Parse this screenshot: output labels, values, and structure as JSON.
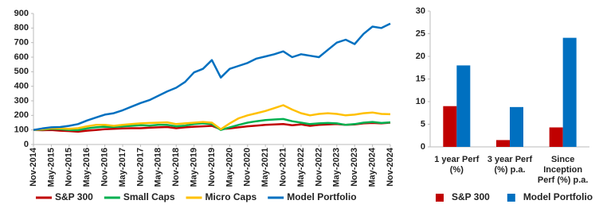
{
  "chart_data": [
    {
      "type": "line",
      "categories": [
        "Nov-2014",
        null,
        "May-2015",
        null,
        "Nov-2015",
        null,
        "May-2016",
        null,
        "Nov-2016",
        null,
        "May-2017",
        null,
        "Nov-2017",
        null,
        "May-2018",
        null,
        "Nov-2018",
        null,
        "May-2019",
        null,
        "Nov-2019",
        null,
        "May-2020",
        null,
        "Nov-2020",
        null,
        "May-2021",
        null,
        "Nov-2021",
        null,
        "May-2022",
        null,
        "Nov-2022",
        null,
        "May-2023",
        null,
        "Nov-2023",
        null,
        "May-2024",
        null,
        "Nov-2024"
      ],
      "series": [
        {
          "name": "S&P 300",
          "color": "#c00000",
          "values": [
            100,
            98,
            100,
            95,
            92,
            88,
            95,
            100,
            105,
            108,
            110,
            112,
            112,
            115,
            118,
            120,
            112,
            118,
            122,
            125,
            128,
            105,
            110,
            118,
            125,
            130,
            135,
            138,
            140,
            132,
            138,
            128,
            135,
            138,
            140,
            135,
            138,
            145,
            148,
            145,
            150
          ]
        },
        {
          "name": "Small Caps",
          "color": "#00b050",
          "values": [
            100,
            102,
            108,
            105,
            100,
            98,
            110,
            118,
            122,
            120,
            125,
            128,
            132,
            130,
            135,
            135,
            125,
            130,
            140,
            145,
            140,
            100,
            118,
            135,
            150,
            160,
            168,
            172,
            175,
            160,
            150,
            140,
            145,
            148,
            145,
            135,
            140,
            150,
            155,
            148,
            152
          ]
        },
        {
          "name": "Micro Caps",
          "color": "#ffc000",
          "values": [
            100,
            105,
            112,
            110,
            108,
            112,
            125,
            135,
            135,
            128,
            135,
            140,
            145,
            148,
            150,
            152,
            140,
            145,
            150,
            155,
            150,
            105,
            145,
            180,
            200,
            215,
            230,
            250,
            270,
            240,
            215,
            200,
            210,
            215,
            210,
            200,
            205,
            215,
            220,
            210,
            208
          ]
        },
        {
          "name": "Model Portfolio",
          "color": "#0070c0",
          "values": [
            100,
            110,
            118,
            120,
            128,
            140,
            165,
            185,
            205,
            215,
            235,
            260,
            285,
            305,
            335,
            365,
            390,
            430,
            495,
            520,
            580,
            460,
            520,
            540,
            560,
            590,
            605,
            620,
            640,
            600,
            620,
            610,
            600,
            650,
            700,
            720,
            690,
            760,
            810,
            800,
            830
          ]
        }
      ],
      "ylim": [
        0,
        900
      ],
      "yticks": [
        0,
        100,
        200,
        300,
        400,
        500,
        600,
        700,
        800,
        900
      ],
      "legend": "bottom"
    },
    {
      "type": "bar",
      "categories": [
        "1 year Perf (%)",
        "3 year Perf (%) p.a.",
        "Since Inception Perf (%) p.a."
      ],
      "series": [
        {
          "name": "S&P 300",
          "color": "#c00000",
          "values": [
            9,
            1.5,
            4.3
          ]
        },
        {
          "name": "Model Portfolio",
          "color": "#0070c0",
          "values": [
            18,
            8.8,
            24.1
          ]
        }
      ],
      "ylim": [
        0,
        30
      ],
      "yticks": [
        0,
        5,
        10,
        15,
        20,
        25,
        30
      ],
      "legend": "bottom"
    }
  ]
}
